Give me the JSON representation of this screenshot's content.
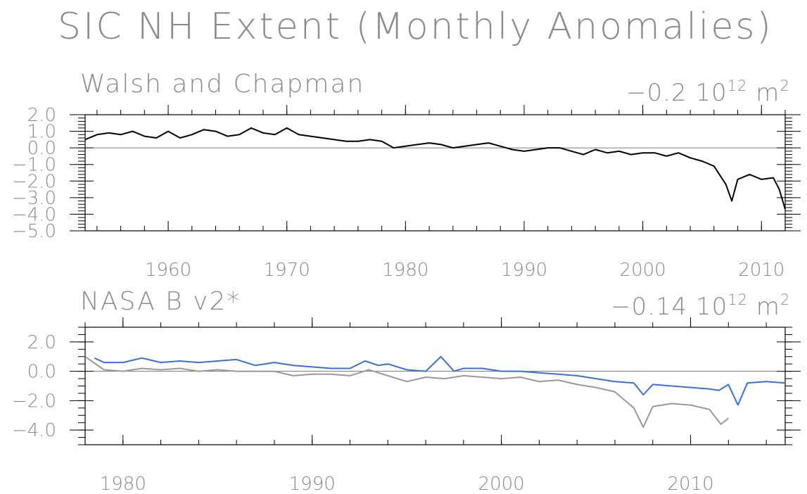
{
  "figure": {
    "title": "SIC NH Extent (Monthly Anomalies)"
  },
  "chart_data": [
    {
      "type": "line",
      "title": "Walsh and Chapman",
      "trend_label": {
        "value": "−0.2",
        "base": "10",
        "exponent": "12",
        "unit": "m",
        "unit_exponent": "2"
      },
      "xlim": [
        1953,
        2012
      ],
      "ylim": [
        -5.0,
        2.0
      ],
      "x_ticks": [
        1960,
        1970,
        1980,
        1990,
        2000,
        2010
      ],
      "x_tick_labels": [
        "1960",
        "1970",
        "1980",
        "1990",
        "2000",
        "2010"
      ],
      "y_ticks": [
        2.0,
        1.0,
        0.0,
        -1.0,
        -2.0,
        -3.0,
        -4.0,
        -5.0
      ],
      "y_tick_labels": [
        "2.0",
        "1.0",
        "0.0",
        "−1.0",
        "−2.0",
        "−3.0",
        "−4.0",
        "−5.0"
      ],
      "zero_line": true,
      "series": [
        {
          "color": "#000000",
          "x": [
            1953.0,
            1954.0,
            1955.0,
            1956.0,
            1957.0,
            1958.0,
            1959.0,
            1960.0,
            1961.0,
            1962.0,
            1963.0,
            1964.0,
            1965.0,
            1966.0,
            1967.0,
            1968.0,
            1969.0,
            1970.0,
            1971.0,
            1972.0,
            1973.0,
            1974.0,
            1975.0,
            1976.0,
            1977.0,
            1978.0,
            1979.0,
            1980.0,
            1981.0,
            1982.0,
            1983.0,
            1984.0,
            1985.0,
            1986.0,
            1987.0,
            1988.0,
            1989.0,
            1990.0,
            1991.0,
            1992.0,
            1993.0,
            1994.0,
            1995.0,
            1996.0,
            1997.0,
            1998.0,
            1999.0,
            2000.0,
            2001.0,
            2002.0,
            2003.0,
            2004.0,
            2005.0,
            2006.0,
            2007.0,
            2007.5,
            2008.0,
            2009.0,
            2010.0,
            2011.0,
            2011.5,
            2012.0
          ],
          "y": [
            0.5,
            0.8,
            0.9,
            0.8,
            1.0,
            0.7,
            0.6,
            1.0,
            0.6,
            0.8,
            1.1,
            1.0,
            0.7,
            0.8,
            1.2,
            0.9,
            0.8,
            1.2,
            0.8,
            0.7,
            0.6,
            0.5,
            0.4,
            0.4,
            0.5,
            0.4,
            0.0,
            0.1,
            0.2,
            0.3,
            0.2,
            0.0,
            0.1,
            0.2,
            0.3,
            0.1,
            -0.1,
            -0.2,
            -0.1,
            0.0,
            0.0,
            -0.2,
            -0.4,
            -0.1,
            -0.3,
            -0.2,
            -0.4,
            -0.3,
            -0.3,
            -0.5,
            -0.3,
            -0.6,
            -0.8,
            -1.1,
            -2.2,
            -3.2,
            -1.9,
            -1.6,
            -1.9,
            -1.8,
            -2.5,
            -3.7
          ]
        }
      ]
    },
    {
      "type": "line",
      "title": "NASA B v2*",
      "trend_label": {
        "value": "−0.14",
        "base": "10",
        "exponent": "12",
        "unit": "m",
        "unit_exponent": "2"
      },
      "xlim": [
        1978,
        2015
      ],
      "ylim": [
        -5.0,
        3.0
      ],
      "x_ticks": [
        1980,
        1990,
        2000,
        2010
      ],
      "x_tick_labels": [
        "1980",
        "1990",
        "2000",
        "2010"
      ],
      "y_ticks": [
        2.0,
        0.0,
        -2.0,
        -4.0
      ],
      "y_tick_labels": [
        "2.0",
        "0.0",
        "−2.0",
        "−4.0"
      ],
      "zero_line": true,
      "series": [
        {
          "color": "#3a6fd8",
          "x": [
            1978.5,
            1979.0,
            1980.0,
            1981.0,
            1982.0,
            1983.0,
            1984.0,
            1985.0,
            1986.0,
            1987.0,
            1988.0,
            1989.0,
            1990.0,
            1991.0,
            1992.0,
            1992.8,
            1993.5,
            1994.0,
            1995.0,
            1996.0,
            1996.8,
            1997.5,
            1998.0,
            1999.0,
            2000.0,
            2001.0,
            2002.0,
            2003.0,
            2004.0,
            2005.0,
            2006.0,
            2007.0,
            2007.5,
            2008.0,
            2009.0,
            2010.0,
            2011.0,
            2011.5,
            2012.0,
            2012.5,
            2013.0,
            2014.0,
            2015.0
          ],
          "y": [
            0.9,
            0.6,
            0.6,
            0.9,
            0.6,
            0.7,
            0.6,
            0.7,
            0.8,
            0.4,
            0.6,
            0.4,
            0.3,
            0.2,
            0.2,
            0.7,
            0.4,
            0.5,
            0.1,
            0.0,
            1.0,
            0.0,
            0.2,
            0.2,
            0.0,
            0.0,
            -0.1,
            -0.2,
            -0.3,
            -0.5,
            -0.7,
            -0.8,
            -1.6,
            -0.9,
            -1.0,
            -1.1,
            -1.2,
            -1.3,
            -0.9,
            -2.3,
            -0.8,
            -0.7,
            -0.8
          ]
        },
        {
          "color": "#999999",
          "x": [
            1978.0,
            1979.0,
            1980.0,
            1981.0,
            1982.0,
            1983.0,
            1984.0,
            1985.0,
            1986.0,
            1987.0,
            1988.0,
            1989.0,
            1990.0,
            1991.0,
            1992.0,
            1993.0,
            1994.0,
            1995.0,
            1996.0,
            1997.0,
            1998.0,
            1999.0,
            2000.0,
            2001.0,
            2002.0,
            2003.0,
            2004.0,
            2005.0,
            2006.0,
            2007.0,
            2007.5,
            2008.0,
            2009.0,
            2010.0,
            2011.0,
            2011.6,
            2012.0
          ],
          "y": [
            1.0,
            0.1,
            0.0,
            0.2,
            0.1,
            0.2,
            0.0,
            0.1,
            0.0,
            0.0,
            0.0,
            -0.3,
            -0.2,
            -0.2,
            -0.3,
            0.1,
            -0.3,
            -0.7,
            -0.4,
            -0.5,
            -0.3,
            -0.4,
            -0.5,
            -0.4,
            -0.7,
            -0.6,
            -0.9,
            -1.1,
            -1.4,
            -2.5,
            -3.8,
            -2.4,
            -2.2,
            -2.3,
            -2.6,
            -3.6,
            -3.2
          ]
        }
      ]
    }
  ]
}
